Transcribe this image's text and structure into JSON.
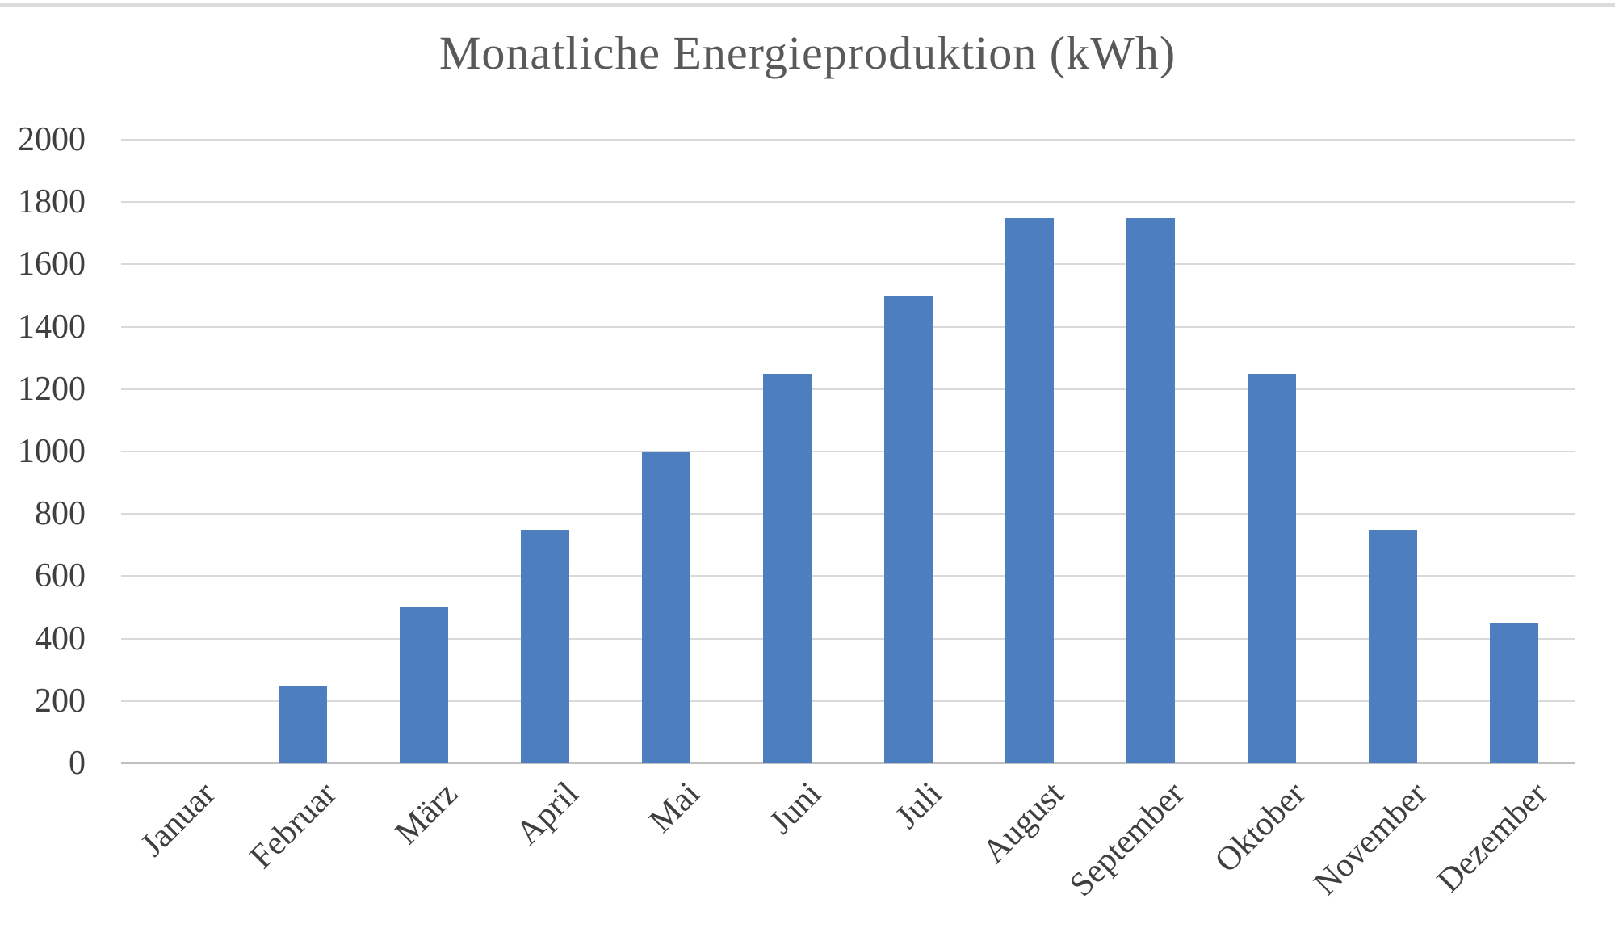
{
  "page": {
    "background": "#ffffff",
    "top_rule_color": "#dcdcdc"
  },
  "chart_data": {
    "type": "bar",
    "title": "Monatliche Energieproduktion (kWh)",
    "categories": [
      "Januar",
      "Februar",
      "März",
      "April",
      "Mai",
      "Juni",
      "Juli",
      "August",
      "September",
      "Oktober",
      "November",
      "Dezember"
    ],
    "values": [
      0,
      250,
      500,
      750,
      1000,
      1250,
      1500,
      1750,
      1750,
      1250,
      750,
      450
    ],
    "xlabel": "",
    "ylabel": "",
    "ylim": [
      0,
      2000
    ],
    "yticks": [
      0,
      200,
      400,
      600,
      800,
      1000,
      1200,
      1400,
      1600,
      1800,
      2000
    ],
    "grid": true,
    "legend_position": "none",
    "x_tick_rotation_deg": 45,
    "bar_color": "#4d7ec0",
    "gridline_color": "#d9d9d9",
    "axis_line_color": "#c0c0c0",
    "title_color": "#595959",
    "tick_label_color": "#3f3f3f"
  }
}
